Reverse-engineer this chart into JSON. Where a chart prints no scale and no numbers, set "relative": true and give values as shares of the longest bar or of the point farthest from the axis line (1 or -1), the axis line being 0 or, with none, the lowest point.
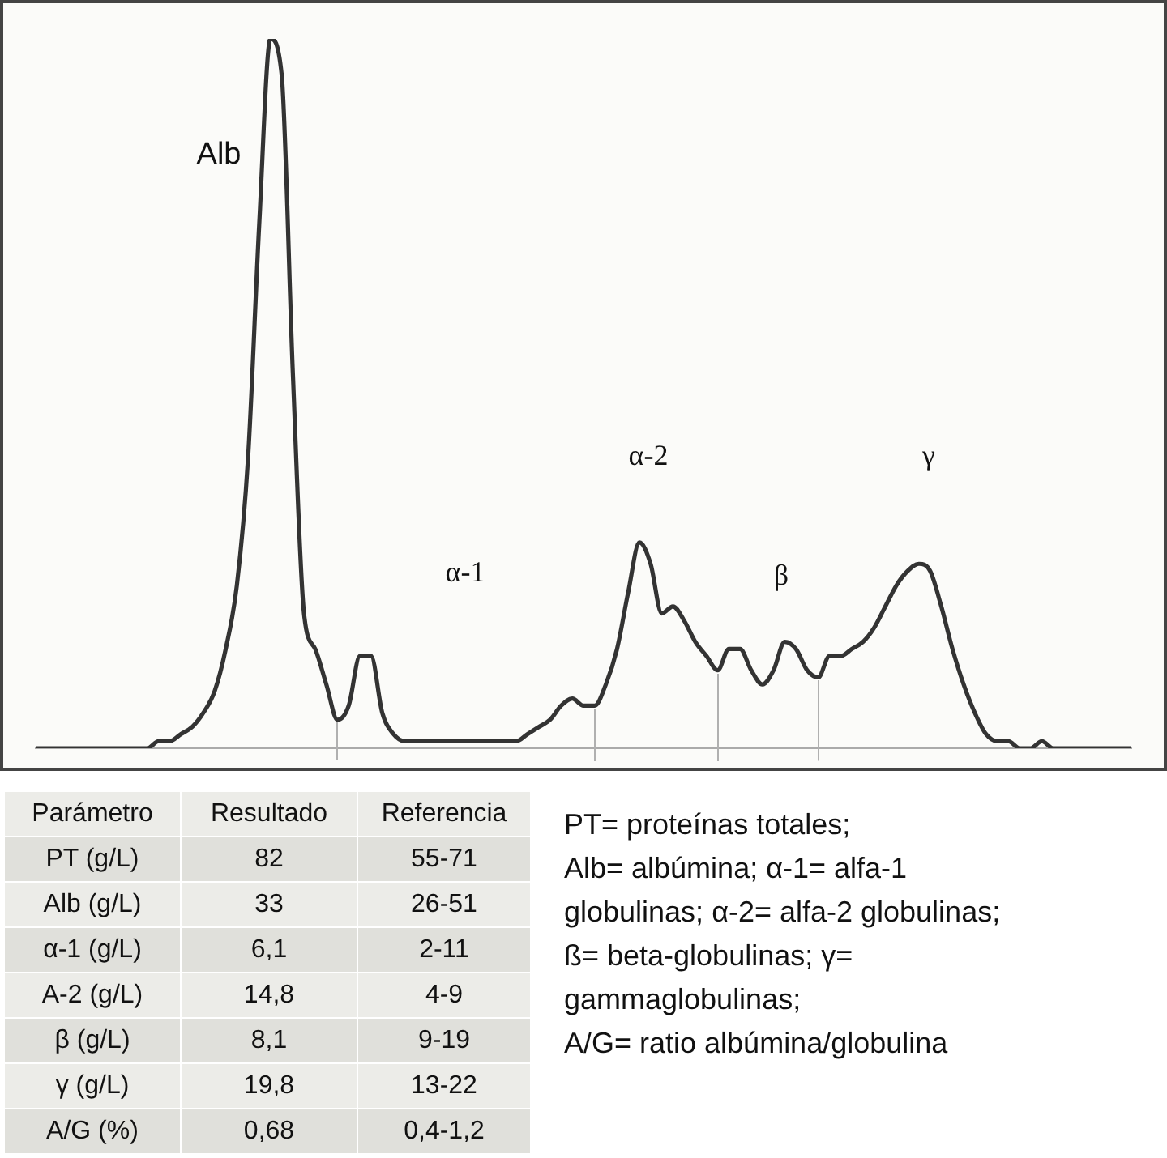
{
  "chart_data": [
    {
      "type": "line",
      "relative": true,
      "tick_labels": false,
      "marker": "none",
      "categories": [
        null,
        null,
        null,
        null,
        null,
        null,
        null,
        null,
        null,
        null,
        null,
        null,
        null,
        null,
        null,
        null,
        null,
        null,
        null,
        null,
        null,
        null,
        null,
        null,
        null,
        null,
        null,
        null,
        null,
        null,
        null,
        null,
        null,
        null,
        null,
        null,
        null,
        null,
        null,
        null,
        null,
        null,
        null,
        null,
        null,
        null,
        null,
        null,
        null,
        null,
        null,
        null,
        null,
        null,
        null,
        null,
        null,
        null,
        null,
        null,
        null,
        null,
        null,
        null,
        null,
        null,
        null,
        null,
        null,
        null,
        null,
        null,
        null,
        null,
        null,
        null,
        null,
        null,
        null,
        null,
        null,
        null,
        null,
        null,
        null,
        null,
        null,
        null,
        null,
        null,
        null,
        null,
        null,
        null,
        null,
        null,
        null,
        null,
        null
      ],
      "series": [
        {
          "color": "#333333",
          "values": [
            0,
            0,
            0,
            0,
            0,
            0,
            0,
            0,
            0,
            0,
            0,
            0.01,
            0.01,
            0.02,
            0.03,
            0.05,
            0.08,
            0.14,
            0.23,
            0.41,
            0.74,
            1,
            0.95,
            0.53,
            0.19,
            0.14,
            0.09,
            0.04,
            0.06,
            0.13,
            0.13,
            0.05,
            0.02,
            0.01,
            0.01,
            0.01,
            0.01,
            0.01,
            0.01,
            0.01,
            0.01,
            0.01,
            0.01,
            0.01,
            0.02,
            0.03,
            0.04,
            0.06,
            0.07,
            0.06,
            0.06,
            0.09,
            0.14,
            0.22,
            0.29,
            0.26,
            0.19,
            0.2,
            0.18,
            0.15,
            0.13,
            0.11,
            0.14,
            0.14,
            0.11,
            0.09,
            0.11,
            0.15,
            0.14,
            0.11,
            0.1,
            0.13,
            0.13,
            0.14,
            0.15,
            0.17,
            0.2,
            0.23,
            0.25,
            0.26,
            0.25,
            0.2,
            0.14,
            0.09,
            0.05,
            0.02,
            0.01,
            0.01,
            0,
            0,
            0.01,
            0,
            0,
            0,
            0,
            0,
            0,
            0,
            0
          ]
        }
      ],
      "annotations": [
        "Alb",
        "α-1",
        "α-2",
        "β",
        "γ",
        "PT= proteínas totales;\nAlb= albúmina; α-1= alfa-1\nglobulinas; α-2= alfa-2 globulinas;\nß= beta-globulinas; γ=\ngammaglobulinas;\nA/G= ratio albúmina/globulina"
      ]
    },
    {
      "type": "other",
      "annotations": [
        "Parámetro",
        "Resultado",
        "Referencia",
        "PT (g/L)",
        "82",
        "55-71",
        "Alb (g/L)",
        "33",
        "26-51",
        "α-1 (g/L)",
        "6,1",
        "2-11",
        "A-2 (g/L)",
        "14,8",
        "4-9",
        "β (g/L)",
        "8,1",
        "9-19",
        "γ (g/L)",
        "19,8",
        "13-22",
        "A/G (%)",
        "0,68",
        "0,4-1,2"
      ]
    }
  ]
}
